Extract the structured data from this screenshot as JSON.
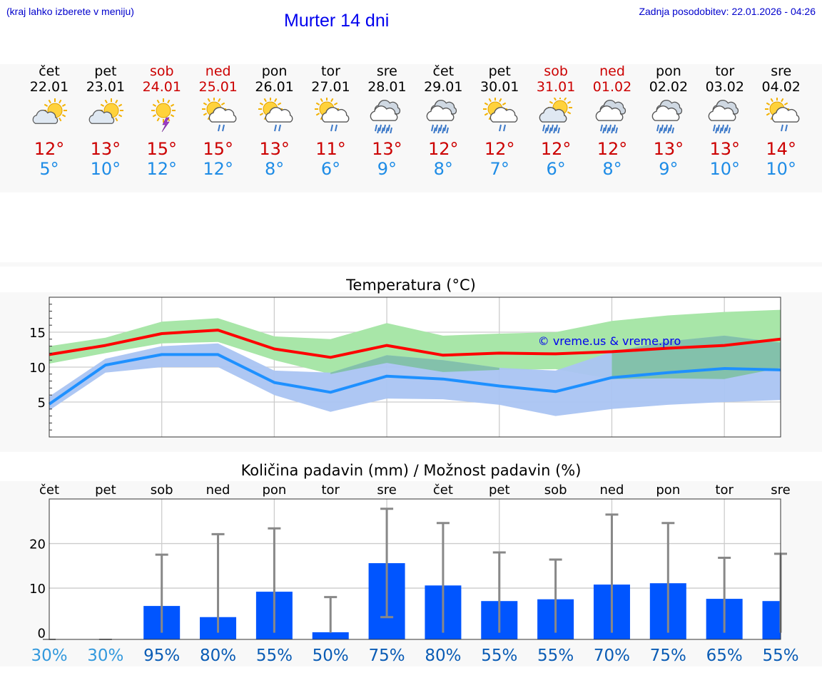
{
  "header": {
    "hint": "(kraj lahko izberete v meniju)",
    "title": "Murter 14 dni",
    "updated": "Zadnja posodobitev: 22.01.2026 - 04:26"
  },
  "days": [
    {
      "name": "čet",
      "date": "22.01",
      "weekend": false,
      "icon": "sun-cloud-icon",
      "max": "12°",
      "min": "5°"
    },
    {
      "name": "pet",
      "date": "23.01",
      "weekend": false,
      "icon": "sun-cloud-icon",
      "max": "13°",
      "min": "10°"
    },
    {
      "name": "sob",
      "date": "24.01",
      "weekend": true,
      "icon": "sun-storm-icon",
      "max": "15°",
      "min": "12°"
    },
    {
      "name": "ned",
      "date": "25.01",
      "weekend": true,
      "icon": "sun-rain-icon",
      "max": "15°",
      "min": "12°"
    },
    {
      "name": "pon",
      "date": "26.01",
      "weekend": false,
      "icon": "sun-rain-icon",
      "max": "13°",
      "min": "8°"
    },
    {
      "name": "tor",
      "date": "27.01",
      "weekend": false,
      "icon": "sun-rain-icon",
      "max": "11°",
      "min": "6°"
    },
    {
      "name": "sre",
      "date": "28.01",
      "weekend": false,
      "icon": "cloud-heavy-rain-icon",
      "max": "13°",
      "min": "9°"
    },
    {
      "name": "čet",
      "date": "29.01",
      "weekend": false,
      "icon": "cloud-heavy-rain-icon",
      "max": "12°",
      "min": "8°"
    },
    {
      "name": "pet",
      "date": "30.01",
      "weekend": false,
      "icon": "sun-rain-icon",
      "max": "12°",
      "min": "7°"
    },
    {
      "name": "sob",
      "date": "31.01",
      "weekend": true,
      "icon": "sun-heavy-rain-icon",
      "max": "12°",
      "min": "6°"
    },
    {
      "name": "ned",
      "date": "01.02",
      "weekend": true,
      "icon": "cloud-heavy-rain-icon",
      "max": "12°",
      "min": "8°"
    },
    {
      "name": "pon",
      "date": "02.02",
      "weekend": false,
      "icon": "cloud-heavy-rain-icon",
      "max": "13°",
      "min": "9°"
    },
    {
      "name": "tor",
      "date": "03.02",
      "weekend": false,
      "icon": "cloud-heavy-rain-icon",
      "max": "13°",
      "min": "10°"
    },
    {
      "name": "sre",
      "date": "04.02",
      "weekend": false,
      "icon": "sun-rain-icon",
      "max": "14°",
      "min": "10°"
    }
  ],
  "colors": {
    "max": "#ff0000",
    "min": "#1e90ff",
    "max_band": "#a8e6a8",
    "min_band": "#aac4f2",
    "overlap_band": "#7dbf9f",
    "bar": "#0055ff",
    "error": "#888888",
    "pct_low": "#3399dd",
    "pct_high": "#0a5cb5",
    "watermark": "#0000ee"
  },
  "chart_data": [
    {
      "type": "line",
      "title": "Temperatura (°C)",
      "watermark": "© vreme.us & vreme.pro",
      "ylim": [
        0,
        20
      ],
      "yticks": [
        5,
        10,
        15
      ],
      "series": [
        {
          "name": "max",
          "values": [
            11.8,
            13.1,
            14.8,
            15.3,
            12.6,
            11.4,
            13.1,
            11.7,
            12.0,
            11.9,
            12.2,
            12.7,
            13.1,
            14.0
          ],
          "band_low": [
            10.5,
            12.0,
            13.4,
            13.6,
            11.0,
            9.0,
            10.6,
            9.3,
            9.6,
            9.7,
            8.3,
            8.4,
            8.3,
            9.9
          ],
          "band_high": [
            13.0,
            14.2,
            16.5,
            17.0,
            14.4,
            14.0,
            16.3,
            14.5,
            14.8,
            15.0,
            16.6,
            17.4,
            17.9,
            18.2
          ]
        },
        {
          "name": "min",
          "values": [
            4.7,
            10.3,
            11.8,
            11.8,
            7.8,
            6.4,
            8.7,
            8.3,
            7.3,
            6.5,
            8.5,
            9.2,
            9.8,
            9.6
          ],
          "band_low": [
            3.8,
            9.2,
            10.0,
            10.0,
            6.0,
            3.6,
            5.5,
            5.4,
            4.6,
            3.0,
            4.0,
            4.6,
            5.0,
            5.3
          ],
          "band_high": [
            5.8,
            11.2,
            13.0,
            13.4,
            9.5,
            9.2,
            11.7,
            11.0,
            9.9,
            9.5,
            12.2,
            13.7,
            14.5,
            13.5
          ]
        }
      ]
    },
    {
      "type": "bar",
      "title": "Količina padavin (mm) / Možnost padavin (%)",
      "categories": [
        "čet",
        "pet",
        "sob",
        "ned",
        "pon",
        "tor",
        "sre",
        "čet",
        "pet",
        "sob",
        "ned",
        "pon",
        "tor",
        "sre"
      ],
      "ylim": [
        -1.5,
        30
      ],
      "yticks": [
        0,
        10,
        20
      ],
      "values": [
        0,
        0,
        6.0,
        3.5,
        9.2,
        0.1,
        15.6,
        10.6,
        7.1,
        7.5,
        10.8,
        11.1,
        7.6,
        7.1
      ],
      "error_low": [
        0,
        0,
        0,
        0,
        0,
        0,
        3.5,
        0,
        0,
        0,
        0,
        0,
        0,
        0
      ],
      "error_high": [
        0,
        0,
        17.5,
        22.1,
        23.4,
        8.0,
        27.8,
        24.6,
        18.0,
        16.4,
        26.5,
        24.6,
        16.8,
        17.7
      ],
      "percent_labels": [
        "30%",
        "30%",
        "95%",
        "80%",
        "55%",
        "50%",
        "75%",
        "80%",
        "55%",
        "55%",
        "70%",
        "75%",
        "65%",
        "55%"
      ],
      "percent_values": [
        30,
        30,
        95,
        80,
        55,
        50,
        75,
        80,
        55,
        55,
        70,
        75,
        65,
        55
      ]
    }
  ]
}
